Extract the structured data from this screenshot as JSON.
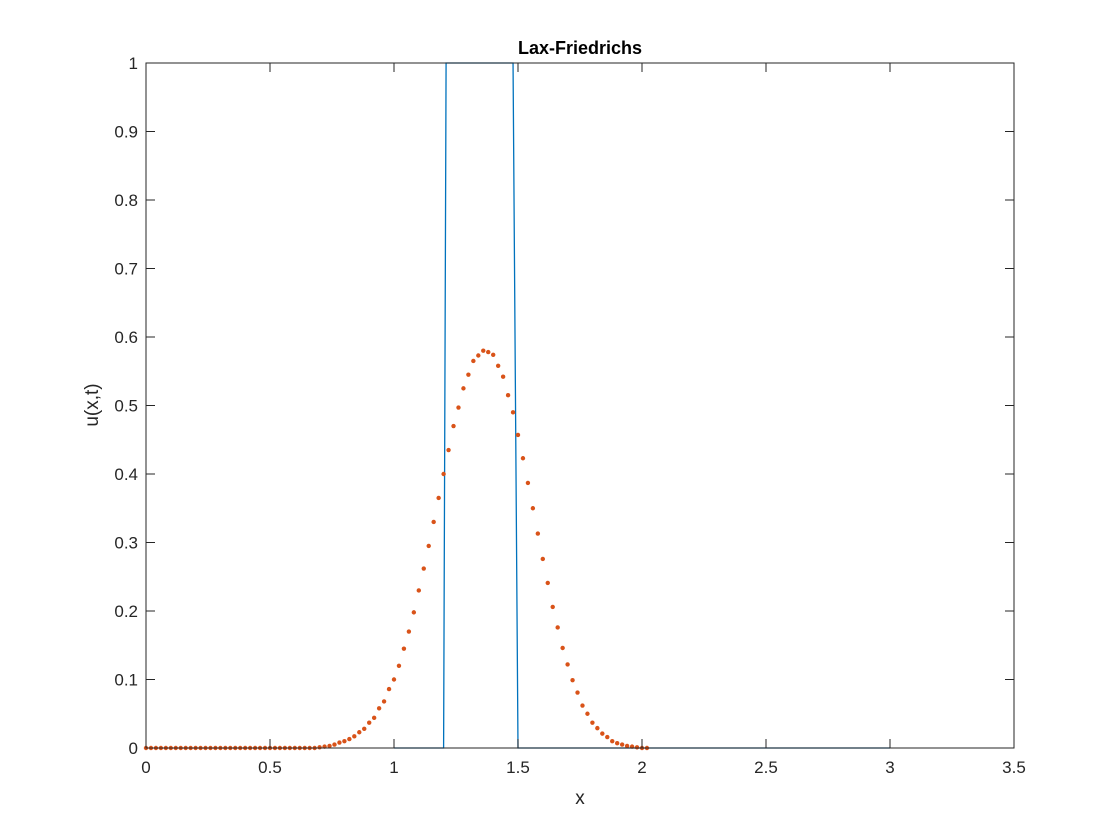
{
  "chart_data": {
    "type": "line",
    "title": "Lax-Friedrichs",
    "xlabel": "x",
    "ylabel": "u(x,t)",
    "xlim": [
      0,
      3.5
    ],
    "ylim": [
      0,
      1
    ],
    "xticks": [
      0,
      0.5,
      1,
      1.5,
      2,
      2.5,
      3,
      3.5
    ],
    "xtick_labels": [
      "0",
      "0.5",
      "1",
      "1.5",
      "2",
      "2.5",
      "3",
      "3.5"
    ],
    "yticks": [
      0,
      0.1,
      0.2,
      0.3,
      0.4,
      0.5,
      0.6,
      0.7,
      0.8,
      0.9,
      1
    ],
    "ytick_labels": [
      "0",
      "0.1",
      "0.2",
      "0.3",
      "0.4",
      "0.5",
      "0.6",
      "0.7",
      "0.8",
      "0.9",
      "1"
    ],
    "grid": false,
    "series": [
      {
        "style": "line",
        "color": "#0072BD",
        "x": [
          1.0,
          1.2,
          1.21,
          1.48,
          1.5,
          3.0
        ],
        "y": [
          0,
          0,
          1,
          1,
          0,
          0
        ]
      },
      {
        "style": "markers",
        "color": "#D95319",
        "x": [
          0.0,
          0.02,
          0.04,
          0.06,
          0.08,
          0.1,
          0.12,
          0.14,
          0.16,
          0.18,
          0.2,
          0.22,
          0.24,
          0.26,
          0.28,
          0.3,
          0.32,
          0.34,
          0.36,
          0.38,
          0.4,
          0.42,
          0.44,
          0.46,
          0.48,
          0.5,
          0.52,
          0.54,
          0.56,
          0.58,
          0.6,
          0.62,
          0.64,
          0.66,
          0.68,
          0.7,
          0.72,
          0.74,
          0.76,
          0.78,
          0.8,
          0.82,
          0.84,
          0.86,
          0.88,
          0.9,
          0.92,
          0.94,
          0.96,
          0.98,
          1.0,
          1.02,
          1.04,
          1.06,
          1.08,
          1.1,
          1.12,
          1.14,
          1.16,
          1.18,
          1.2,
          1.22,
          1.24,
          1.26,
          1.28,
          1.3,
          1.32,
          1.34,
          1.36,
          1.38,
          1.4,
          1.42,
          1.44,
          1.46,
          1.48,
          1.5,
          1.52,
          1.54,
          1.56,
          1.58,
          1.6,
          1.62,
          1.64,
          1.66,
          1.68,
          1.7,
          1.72,
          1.74,
          1.76,
          1.78,
          1.8,
          1.82,
          1.84,
          1.86,
          1.88,
          1.9,
          1.92,
          1.94,
          1.96,
          1.98,
          2.0,
          2.02
        ],
        "y": [
          0,
          0,
          0,
          0,
          0,
          0,
          0,
          0,
          0,
          0,
          0,
          0,
          0,
          0,
          0,
          0,
          0,
          0,
          0,
          0,
          0,
          0,
          0,
          0,
          0,
          0,
          0,
          0,
          0,
          0,
          0,
          0,
          0,
          0,
          0,
          0.001,
          0.002,
          0.003,
          0.005,
          0.008,
          0.01,
          0.013,
          0.017,
          0.023,
          0.028,
          0.037,
          0.044,
          0.058,
          0.068,
          0.086,
          0.1,
          0.12,
          0.145,
          0.17,
          0.198,
          0.23,
          0.262,
          0.295,
          0.33,
          0.365,
          0.4,
          0.435,
          0.47,
          0.497,
          0.525,
          0.545,
          0.565,
          0.573,
          0.58,
          0.578,
          0.574,
          0.558,
          0.542,
          0.515,
          0.49,
          0.457,
          0.423,
          0.387,
          0.35,
          0.313,
          0.276,
          0.241,
          0.206,
          0.176,
          0.146,
          0.122,
          0.099,
          0.081,
          0.062,
          0.05,
          0.037,
          0.029,
          0.021,
          0.016,
          0.01,
          0.007,
          0.005,
          0.003,
          0.002,
          0.001,
          0,
          0
        ]
      }
    ]
  }
}
